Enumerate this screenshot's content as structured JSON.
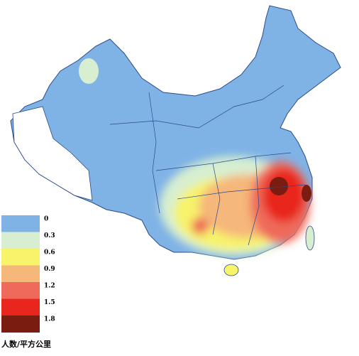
{
  "legend": {
    "items": [
      {
        "label": "0",
        "color": "#7fb3e6"
      },
      {
        "label": "0.3",
        "color": "#d7efd0"
      },
      {
        "label": "0.6",
        "color": "#f7f36a"
      },
      {
        "label": "0.9",
        "color": "#f5b77a"
      },
      {
        "label": "1.2",
        "color": "#ef6a5a"
      },
      {
        "label": "1.5",
        "color": "#e8261e"
      },
      {
        "label": "1.8",
        "color": "#7a1c10"
      }
    ],
    "unit": "人数/平方公里"
  }
}
